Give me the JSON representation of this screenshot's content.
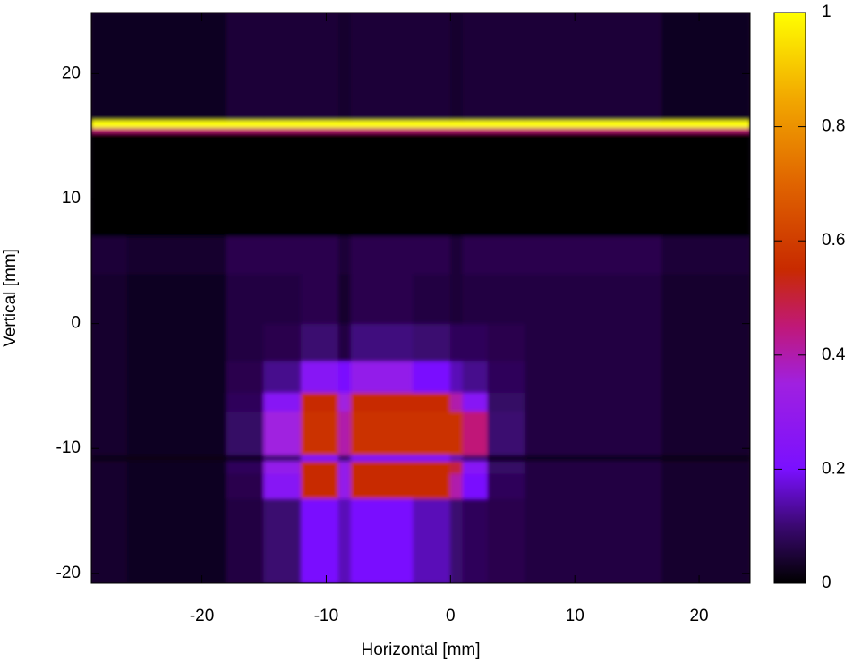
{
  "chart_data": {
    "type": "heatmap",
    "xlabel": "Horizontal [mm]",
    "ylabel": "Vertical [mm]",
    "xlim": [
      -28.9,
      24.1
    ],
    "ylim": [
      -20.8,
      24.9
    ],
    "xticks": [
      -20,
      -10,
      0,
      10,
      20
    ],
    "yticks": [
      -20,
      -10,
      0,
      10,
      20
    ],
    "zlim": [
      0,
      1
    ],
    "zticks": [
      0,
      0.2,
      0.4,
      0.6,
      0.8,
      1
    ],
    "colormap": [
      [
        0,
        "#000000"
      ],
      [
        0.1,
        "#3a0870"
      ],
      [
        0.2,
        "#7a10ff"
      ],
      [
        0.35,
        "#a020e0"
      ],
      [
        0.45,
        "#c01878"
      ],
      [
        0.55,
        "#c82a00"
      ],
      [
        0.7,
        "#e06400"
      ],
      [
        0.85,
        "#f2a800"
      ],
      [
        1,
        "#ffff00"
      ]
    ],
    "xbins": [
      -28.9,
      -26,
      -18,
      -15,
      -12,
      -9,
      -8,
      -3,
      0,
      1,
      3,
      6,
      17,
      24.1
    ],
    "ybins": [
      -20.8,
      -14,
      -12,
      -11,
      -10.5,
      -7,
      -5.5,
      -3,
      0,
      4,
      7,
      15.3,
      15.7,
      16.3,
      24.9
    ],
    "z": [
      [
        0.04,
        0.03,
        0.06,
        0.1,
        0.2,
        0.15,
        0.2,
        0.15,
        0.1,
        0.08,
        0.07,
        0.06,
        0.04
      ],
      [
        0.04,
        0.03,
        0.07,
        0.25,
        0.55,
        0.3,
        0.55,
        0.55,
        0.4,
        0.2,
        0.08,
        0.06,
        0.04
      ],
      [
        0.04,
        0.03,
        0.08,
        0.3,
        0.55,
        0.3,
        0.55,
        0.55,
        0.5,
        0.25,
        0.09,
        0.06,
        0.04
      ],
      [
        0.02,
        0.02,
        0.03,
        0.1,
        0.2,
        0.1,
        0.2,
        0.2,
        0.15,
        0.1,
        0.03,
        0.03,
        0.02
      ],
      [
        0.04,
        0.03,
        0.09,
        0.35,
        0.57,
        0.4,
        0.57,
        0.57,
        0.57,
        0.45,
        0.1,
        0.06,
        0.04
      ],
      [
        0.04,
        0.03,
        0.08,
        0.25,
        0.55,
        0.35,
        0.55,
        0.55,
        0.4,
        0.25,
        0.09,
        0.06,
        0.04
      ],
      [
        0.04,
        0.03,
        0.07,
        0.12,
        0.25,
        0.2,
        0.3,
        0.2,
        0.15,
        0.12,
        0.08,
        0.06,
        0.04
      ],
      [
        0.04,
        0.03,
        0.06,
        0.07,
        0.1,
        0.06,
        0.11,
        0.1,
        0.08,
        0.08,
        0.07,
        0.06,
        0.04
      ],
      [
        0.04,
        0.03,
        0.06,
        0.06,
        0.07,
        0.04,
        0.07,
        0.06,
        0.05,
        0.06,
        0.06,
        0.06,
        0.04
      ],
      [
        0.05,
        0.04,
        0.07,
        0.07,
        0.07,
        0.05,
        0.07,
        0.07,
        0.05,
        0.07,
        0.07,
        0.07,
        0.05
      ],
      [
        0,
        0,
        0,
        0,
        0,
        0,
        0,
        0,
        0,
        0,
        0,
        0,
        0
      ],
      [
        0.45,
        0.45,
        0.45,
        0.45,
        0.45,
        0.45,
        0.45,
        0.45,
        0.45,
        0.45,
        0.45,
        0.45,
        0.45
      ],
      [
        1,
        1,
        1,
        1,
        1,
        1,
        1,
        1,
        1,
        1,
        1,
        1,
        1
      ],
      [
        0.03,
        0.03,
        0.05,
        0.05,
        0.05,
        0.04,
        0.05,
        0.05,
        0.04,
        0.05,
        0.05,
        0.05,
        0.03
      ]
    ]
  }
}
